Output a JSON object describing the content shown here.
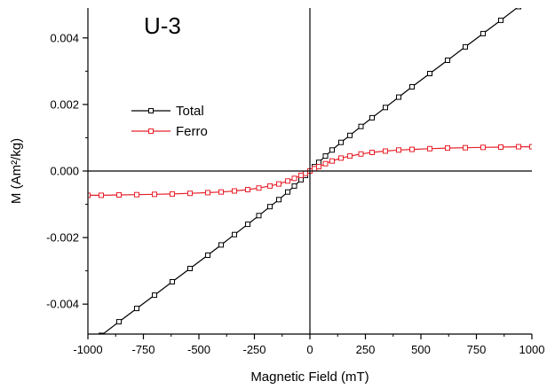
{
  "chart_data": {
    "type": "line",
    "title": "U-3",
    "xlabel": "Magnetic Field (mT)",
    "ylabel": "M (Am²/kg)",
    "xlim": [
      -1000,
      1000
    ],
    "ylim": [
      -0.0049,
      0.0049
    ],
    "xticks": [
      -1000,
      -750,
      -500,
      -250,
      0,
      250,
      500,
      750,
      1000
    ],
    "xtick_labels": [
      "-1000",
      "-750",
      "-500",
      "-250",
      "0",
      "250",
      "500",
      "750",
      "1000"
    ],
    "yticks": [
      -0.004,
      -0.002,
      0.0,
      0.002,
      0.004
    ],
    "ytick_labels": [
      "-0.004",
      "-0.002",
      "0.000",
      "0.002",
      "0.004"
    ],
    "grid": false,
    "legend_position": "upper-left",
    "series": [
      {
        "name": "Total",
        "color": "#000000",
        "marker": "open-square",
        "x": [
          -940,
          -860,
          -780,
          -700,
          -620,
          -540,
          -460,
          -400,
          -340,
          -280,
          -230,
          -180,
          -140,
          -100,
          -70,
          -40,
          -20,
          0,
          20,
          40,
          70,
          100,
          140,
          180,
          230,
          280,
          340,
          400,
          460,
          540,
          620,
          700,
          780,
          860,
          940
        ],
        "y": [
          -0.00494,
          -0.00453,
          -0.00413,
          -0.00373,
          -0.00333,
          -0.00293,
          -0.00253,
          -0.00222,
          -0.00191,
          -0.0016,
          -0.00134,
          -0.00107,
          -0.00086,
          -0.00063,
          -0.00045,
          -0.00026,
          -0.00013,
          0.0,
          0.00013,
          0.00026,
          0.00045,
          0.00063,
          0.00086,
          0.00107,
          0.00134,
          0.0016,
          0.00191,
          0.00222,
          0.00253,
          0.00293,
          0.00333,
          0.00373,
          0.00413,
          0.00453,
          0.00494
        ]
      },
      {
        "name": "Ferro",
        "color": "#e8202a",
        "marker": "open-square",
        "x": [
          -1000,
          -940,
          -860,
          -780,
          -700,
          -620,
          -540,
          -460,
          -400,
          -340,
          -280,
          -230,
          -180,
          -140,
          -100,
          -70,
          -40,
          -20,
          0,
          20,
          40,
          70,
          100,
          140,
          180,
          230,
          280,
          340,
          400,
          460,
          540,
          620,
          700,
          780,
          860,
          940,
          1000
        ],
        "y": [
          -0.00073,
          -0.00073,
          -0.00072,
          -0.00071,
          -0.0007,
          -0.00069,
          -0.00067,
          -0.00065,
          -0.00063,
          -0.0006,
          -0.00056,
          -0.00051,
          -0.00045,
          -0.00039,
          -0.0003,
          -0.00022,
          -0.00013,
          -7e-05,
          0.0,
          7e-05,
          0.00013,
          0.00022,
          0.0003,
          0.00039,
          0.00045,
          0.00051,
          0.00056,
          0.0006,
          0.00063,
          0.00065,
          0.00067,
          0.00069,
          0.0007,
          0.00071,
          0.00072,
          0.00073,
          0.00073
        ]
      }
    ]
  }
}
